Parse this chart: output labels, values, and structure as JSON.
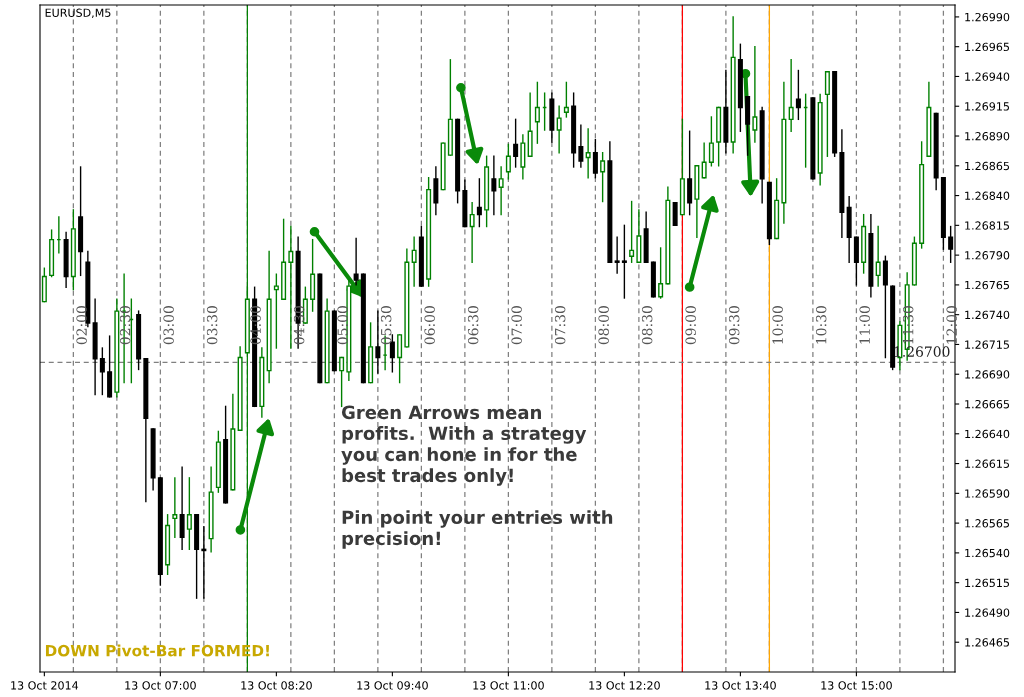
{
  "chart_data": {
    "type": "candlestick",
    "title": "EURUSD,M5",
    "x": [
      "2014-10-13T05:40",
      "2014-10-13T05:45",
      "2014-10-13T05:50",
      "2014-10-13T05:55",
      "2014-10-13T06:00",
      "2014-10-13T06:05",
      "2014-10-13T06:10",
      "2014-10-13T06:15",
      "2014-10-13T06:20",
      "2014-10-13T06:25",
      "2014-10-13T06:30",
      "2014-10-13T06:35",
      "2014-10-13T06:40",
      "2014-10-13T06:45",
      "2014-10-13T06:50",
      "2014-10-13T06:55",
      "2014-10-13T07:00",
      "2014-10-13T07:05",
      "2014-10-13T07:10",
      "2014-10-13T07:15",
      "2014-10-13T07:20",
      "2014-10-13T07:25",
      "2014-10-13T07:30",
      "2014-10-13T07:35",
      "2014-10-13T07:40",
      "2014-10-13T07:45",
      "2014-10-13T07:50",
      "2014-10-13T07:55",
      "2014-10-13T08:00",
      "2014-10-13T08:05",
      "2014-10-13T08:10",
      "2014-10-13T08:15",
      "2014-10-13T08:20",
      "2014-10-13T08:25",
      "2014-10-13T08:30",
      "2014-10-13T08:35",
      "2014-10-13T08:40",
      "2014-10-13T08:45",
      "2014-10-13T08:50",
      "2014-10-13T08:55",
      "2014-10-13T09:00",
      "2014-10-13T09:05",
      "2014-10-13T09:10",
      "2014-10-13T09:15",
      "2014-10-13T09:20",
      "2014-10-13T09:25",
      "2014-10-13T09:30",
      "2014-10-13T09:35",
      "2014-10-13T09:40",
      "2014-10-13T09:45",
      "2014-10-13T09:50",
      "2014-10-13T09:55",
      "2014-10-13T10:00",
      "2014-10-13T10:05",
      "2014-10-13T10:10",
      "2014-10-13T10:15",
      "2014-10-13T10:20",
      "2014-10-13T10:25",
      "2014-10-13T10:30",
      "2014-10-13T10:35",
      "2014-10-13T10:40",
      "2014-10-13T10:45",
      "2014-10-13T10:50",
      "2014-10-13T10:55",
      "2014-10-13T11:00",
      "2014-10-13T11:05",
      "2014-10-13T11:10",
      "2014-10-13T11:15",
      "2014-10-13T11:20",
      "2014-10-13T11:25",
      "2014-10-13T11:30",
      "2014-10-13T11:35",
      "2014-10-13T11:40",
      "2014-10-13T11:45",
      "2014-10-13T11:50",
      "2014-10-13T11:55",
      "2014-10-13T12:00",
      "2014-10-13T12:05",
      "2014-10-13T12:10",
      "2014-10-13T12:15",
      "2014-10-13T12:20",
      "2014-10-13T12:25",
      "2014-10-13T12:30",
      "2014-10-13T12:35",
      "2014-10-13T12:40",
      "2014-10-13T12:45",
      "2014-10-13T12:50",
      "2014-10-13T12:55",
      "2014-10-13T13:00",
      "2014-10-13T13:05",
      "2014-10-13T13:10",
      "2014-10-13T13:15",
      "2014-10-13T13:20",
      "2014-10-13T13:25",
      "2014-10-13T13:30",
      "2014-10-13T13:35",
      "2014-10-13T13:40",
      "2014-10-13T13:45",
      "2014-10-13T13:50",
      "2014-10-13T13:55",
      "2014-10-13T14:00",
      "2014-10-13T14:05",
      "2014-10-13T14:10",
      "2014-10-13T14:15",
      "2014-10-13T14:20",
      "2014-10-13T14:25",
      "2014-10-13T14:30",
      "2014-10-13T14:35",
      "2014-10-13T14:40",
      "2014-10-13T14:45",
      "2014-10-13T14:50",
      "2014-10-13T14:55",
      "2014-10-13T15:00",
      "2014-10-13T15:05",
      "2014-10-13T15:10",
      "2014-10-13T15:15",
      "2014-10-13T15:20",
      "2014-10-13T15:25",
      "2014-10-13T15:30",
      "2014-10-13T15:35",
      "2014-10-13T15:40",
      "2014-10-13T15:45",
      "2014-10-13T15:50",
      "2014-10-13T15:55",
      "2014-10-13T16:00",
      "2014-10-13T16:05"
    ],
    "ohlc": [
      [
        1.26751,
        1.26779,
        1.26751,
        1.26772
      ],
      [
        1.26773,
        1.26811,
        1.26772,
        1.26803
      ],
      [
        1.26803,
        1.26822,
        1.26792,
        1.26803
      ],
      [
        1.26803,
        1.26809,
        1.26763,
        1.26772
      ],
      [
        1.26772,
        1.26828,
        1.26761,
        1.26812
      ],
      [
        1.26822,
        1.26864,
        1.26773,
        1.26793
      ],
      [
        1.26784,
        1.26793,
        1.2673,
        1.26733
      ],
      [
        1.26733,
        1.26753,
        1.26673,
        1.26703
      ],
      [
        1.26703,
        1.26712,
        1.26673,
        1.26692
      ],
      [
        1.26692,
        1.26722,
        1.26671,
        1.26671
      ],
      [
        1.26675,
        1.26753,
        1.26671,
        1.26743
      ],
      [
        1.26743,
        1.26774,
        1.26683,
        1.26743
      ],
      [
        1.26736,
        1.26753,
        1.26683,
        1.26736
      ],
      [
        1.2674,
        1.26743,
        1.26694,
        1.26703
      ],
      [
        1.26703,
        1.26703,
        1.26583,
        1.26653
      ],
      [
        1.26644,
        1.26644,
        1.26593,
        1.26603
      ],
      [
        1.26603,
        1.26603,
        1.26513,
        1.26522
      ],
      [
        1.2653,
        1.26572,
        1.26522,
        1.26563
      ],
      [
        1.26569,
        1.26603,
        1.26553,
        1.26572
      ],
      [
        1.26572,
        1.26612,
        1.26543,
        1.26553
      ],
      [
        1.2656,
        1.26603,
        1.26543,
        1.26572
      ],
      [
        1.26572,
        1.26572,
        1.26502,
        1.26543
      ],
      [
        1.26543,
        1.26562,
        1.26502,
        1.26542
      ],
      [
        1.26552,
        1.26612,
        1.26541,
        1.26591
      ],
      [
        1.26595,
        1.26642,
        1.26591,
        1.26633
      ],
      [
        1.26635,
        1.26663,
        1.26582,
        1.26582
      ],
      [
        1.26593,
        1.26673,
        1.26593,
        1.26644
      ],
      [
        1.26643,
        1.26713,
        1.26643,
        1.26704
      ],
      [
        1.26708,
        1.26763,
        1.26708,
        1.26753
      ],
      [
        1.26753,
        1.26763,
        1.26663,
        1.26663
      ],
      [
        1.26663,
        1.26712,
        1.26654,
        1.26704
      ],
      [
        1.26693,
        1.26793,
        1.26683,
        1.26753
      ],
      [
        1.26761,
        1.26774,
        1.26712,
        1.26764
      ],
      [
        1.26753,
        1.2682,
        1.26753,
        1.26784
      ],
      [
        1.26784,
        1.26814,
        1.26712,
        1.26793
      ],
      [
        1.26793,
        1.26805,
        1.26712,
        1.26733
      ],
      [
        1.26733,
        1.26763,
        1.26733,
        1.26753
      ],
      [
        1.26753,
        1.26803,
        1.26743,
        1.26774
      ],
      [
        1.26774,
        1.26774,
        1.26683,
        1.26683
      ],
      [
        1.26683,
        1.26753,
        1.26683,
        1.26743
      ],
      [
        1.26743,
        1.26743,
        1.26693,
        1.26693
      ],
      [
        1.26693,
        1.26704,
        1.26663,
        1.26704
      ],
      [
        1.26692,
        1.26769,
        1.26685,
        1.26764
      ],
      [
        1.26774,
        1.26804,
        1.26765,
        1.26769
      ],
      [
        1.26774,
        1.26774,
        1.26683,
        1.26683
      ],
      [
        1.26683,
        1.26733,
        1.26683,
        1.26713
      ],
      [
        1.26713,
        1.26743,
        1.26691,
        1.26704
      ],
      [
        1.26706,
        1.26722,
        1.26694,
        1.26706
      ],
      [
        1.26717,
        1.26723,
        1.26692,
        1.26704
      ],
      [
        1.26704,
        1.26723,
        1.26683,
        1.26723
      ],
      [
        1.26713,
        1.26795,
        1.26713,
        1.26784
      ],
      [
        1.26784,
        1.26805,
        1.26764,
        1.26794
      ],
      [
        1.26805,
        1.26814,
        1.26764,
        1.26764
      ],
      [
        1.2677,
        1.26855,
        1.26764,
        1.26845
      ],
      [
        1.26854,
        1.26864,
        1.26824,
        1.26834
      ],
      [
        1.26845,
        1.26884,
        1.26845,
        1.26884
      ],
      [
        1.26874,
        1.26954,
        1.26874,
        1.26904
      ],
      [
        1.26904,
        1.26904,
        1.26834,
        1.26844
      ],
      [
        1.26844,
        1.26853,
        1.26814,
        1.26814
      ],
      [
        1.26814,
        1.26834,
        1.26784,
        1.26824
      ],
      [
        1.2683,
        1.26854,
        1.26814,
        1.26824
      ],
      [
        1.26828,
        1.26873,
        1.26814,
        1.26864
      ],
      [
        1.26854,
        1.26873,
        1.26824,
        1.26844
      ],
      [
        1.26847,
        1.26864,
        1.26824,
        1.26854
      ],
      [
        1.2686,
        1.26883,
        1.26854,
        1.26873
      ],
      [
        1.26883,
        1.26904,
        1.26864,
        1.26873
      ],
      [
        1.26864,
        1.26891,
        1.26854,
        1.26884
      ],
      [
        1.26873,
        1.26926,
        1.26873,
        1.26894
      ],
      [
        1.26902,
        1.26935,
        1.26884,
        1.26914
      ],
      [
        1.26914,
        1.26926,
        1.26895,
        1.26914
      ],
      [
        1.26921,
        1.26926,
        1.26885,
        1.26895
      ],
      [
        1.26895,
        1.26915,
        1.26876,
        1.26905
      ],
      [
        1.2691,
        1.26935,
        1.26906,
        1.26914
      ],
      [
        1.26915,
        1.26926,
        1.26864,
        1.26876
      ],
      [
        1.26881,
        1.26899,
        1.26864,
        1.26869
      ],
      [
        1.26872,
        1.26896,
        1.26855,
        1.26876
      ],
      [
        1.26876,
        1.26887,
        1.26855,
        1.26859
      ],
      [
        1.2686,
        1.26876,
        1.26835,
        1.26869
      ],
      [
        1.26869,
        1.26885,
        1.26784,
        1.26784
      ],
      [
        1.26785,
        1.26805,
        1.26775,
        1.26784
      ],
      [
        1.26785,
        1.26815,
        1.26754,
        1.26784
      ],
      [
        1.26789,
        1.26835,
        1.26784,
        1.26794
      ],
      [
        1.26784,
        1.26828,
        1.26784,
        1.26806
      ],
      [
        1.26812,
        1.26826,
        1.26784,
        1.26784
      ],
      [
        1.26784,
        1.26784,
        1.26755,
        1.26755
      ],
      [
        1.26755,
        1.26796,
        1.26754,
        1.26766
      ],
      [
        1.26766,
        1.26847,
        1.26766,
        1.26836
      ],
      [
        1.26834,
        1.26834,
        1.26815,
        1.26815
      ],
      [
        1.26824,
        1.26904,
        1.26824,
        1.26854
      ],
      [
        1.26854,
        1.26894,
        1.26824,
        1.26834
      ],
      [
        1.26837,
        1.26865,
        1.26805,
        1.26865
      ],
      [
        1.26855,
        1.26884,
        1.26855,
        1.26868
      ],
      [
        1.26868,
        1.26906,
        1.26865,
        1.26884
      ],
      [
        1.26885,
        1.26914,
        1.26865,
        1.26914
      ],
      [
        1.26914,
        1.26945,
        1.26876,
        1.26885
      ],
      [
        1.26885,
        1.2699,
        1.26876,
        1.26956
      ],
      [
        1.26954,
        1.26967,
        1.26894,
        1.26914
      ],
      [
        1.26923,
        1.26923,
        1.26874,
        1.269
      ],
      [
        1.26895,
        1.26965,
        1.26885,
        1.26906
      ],
      [
        1.26911,
        1.26914,
        1.26834,
        1.26854
      ],
      [
        1.26851,
        1.26851,
        1.26799,
        1.26804
      ],
      [
        1.26804,
        1.26854,
        1.26804,
        1.26836
      ],
      [
        1.26834,
        1.26935,
        1.26817,
        1.26904
      ],
      [
        1.26904,
        1.26954,
        1.26894,
        1.26914
      ],
      [
        1.26921,
        1.26945,
        1.26904,
        1.26914
      ],
      [
        1.26914,
        1.26925,
        1.26864,
        1.26914
      ],
      [
        1.26922,
        1.26922,
        1.26854,
        1.26854
      ],
      [
        1.26859,
        1.26925,
        1.26849,
        1.26918
      ],
      [
        1.26925,
        1.26944,
        1.26873,
        1.26944
      ],
      [
        1.26944,
        1.26944,
        1.26873,
        1.26876
      ],
      [
        1.26876,
        1.26895,
        1.26805,
        1.26826
      ],
      [
        1.2683,
        1.26839,
        1.26784,
        1.26805
      ],
      [
        1.26805,
        1.26805,
        1.26765,
        1.26784
      ],
      [
        1.26784,
        1.26824,
        1.26775,
        1.26814
      ],
      [
        1.26808,
        1.26824,
        1.26755,
        1.26764
      ],
      [
        1.26773,
        1.26814,
        1.26764,
        1.26784
      ],
      [
        1.26785,
        1.26789,
        1.26704,
        1.26765
      ],
      [
        1.26764,
        1.26764,
        1.26694,
        1.26696
      ],
      [
        1.26704,
        1.26734,
        1.26694,
        1.26731
      ],
      [
        1.26711,
        1.26775,
        1.26702,
        1.26765
      ],
      [
        1.26765,
        1.26805,
        1.26765,
        1.268
      ],
      [
        1.268,
        1.26885,
        1.26796,
        1.26866
      ],
      [
        1.26873,
        1.26935,
        1.26873,
        1.26914
      ],
      [
        1.26909,
        1.26909,
        1.26845,
        1.26855
      ],
      [
        1.26855,
        1.26855,
        1.26795,
        1.26805
      ],
      [
        1.26805,
        1.26814,
        1.26784,
        1.26795
      ]
    ],
    "xlim": [
      "2014-10-13T05:37",
      "2014-10-13T16:08"
    ],
    "xticks": [
      {
        "value": "2014-10-13T05:40",
        "label": "13 Oct 2014"
      },
      {
        "value": "2014-10-13T07:00",
        "label": "13 Oct 07:00"
      },
      {
        "value": "2014-10-13T08:20",
        "label": "13 Oct 08:20"
      },
      {
        "value": "2014-10-13T09:40",
        "label": "13 Oct 09:40"
      },
      {
        "value": "2014-10-13T11:00",
        "label": "13 Oct 11:00"
      },
      {
        "value": "2014-10-13T12:20",
        "label": "13 Oct 12:20"
      },
      {
        "value": "2014-10-13T13:40",
        "label": "13 Oct 13:40"
      },
      {
        "value": "2014-10-13T15:00",
        "label": "13 Oct 15:00"
      }
    ],
    "ylim": [
      1.2644,
      1.27
    ],
    "yticks": [
      {
        "value": 1.2699,
        "label": "1.26990"
      },
      1.26965,
      {
        "value": 1.2694,
        "label": "1.26940"
      },
      1.26915,
      {
        "value": 1.2689,
        "label": "1.26890"
      },
      1.26865,
      {
        "value": 1.2684,
        "label": "1.26840"
      },
      1.26815,
      {
        "value": 1.2679,
        "label": "1.26790"
      },
      1.26765,
      {
        "value": 1.2674,
        "label": "1.26740"
      },
      1.26715,
      {
        "value": 1.2669,
        "label": "1.26690"
      },
      1.26665,
      {
        "value": 1.2664,
        "label": "1.26640"
      },
      1.26615,
      {
        "value": 1.2659,
        "label": "1.26590"
      },
      1.26565,
      {
        "value": 1.2654,
        "label": "1.26540"
      },
      1.26515,
      {
        "value": 1.2649,
        "label": "1.26490"
      },
      1.26465
    ],
    "ref_lines": [
      {
        "axis": "x",
        "value": "2014-10-13T06:00",
        "label": "02:00",
        "color": "#808080",
        "line_style": "dashed"
      },
      {
        "axis": "x",
        "value": "2014-10-13T06:30",
        "label": "02:30",
        "color": "#808080",
        "line_style": "dashed"
      },
      {
        "axis": "x",
        "value": "2014-10-13T07:00",
        "label": "03:00",
        "color": "#808080",
        "line_style": "dashed"
      },
      {
        "axis": "x",
        "value": "2014-10-13T07:30",
        "label": "03:30",
        "color": "#808080",
        "line_style": "dashed"
      },
      {
        "axis": "x",
        "value": "2014-10-13T08:00",
        "label": "04:00",
        "color": "#808080",
        "line_style": "dashed"
      },
      {
        "axis": "x",
        "value": "2014-10-13T08:30",
        "label": "04:30",
        "color": "#808080",
        "line_style": "dashed"
      },
      {
        "axis": "x",
        "value": "2014-10-13T09:00",
        "label": "05:00",
        "color": "#808080",
        "line_style": "dashed"
      },
      {
        "axis": "x",
        "value": "2014-10-13T09:30",
        "label": "05:30",
        "color": "#808080",
        "line_style": "dashed"
      },
      {
        "axis": "x",
        "value": "2014-10-13T10:00",
        "label": "06:00",
        "color": "#808080",
        "line_style": "dashed"
      },
      {
        "axis": "x",
        "value": "2014-10-13T10:30",
        "label": "06:30",
        "color": "#808080",
        "line_style": "dashed"
      },
      {
        "axis": "x",
        "value": "2014-10-13T11:00",
        "label": "07:00",
        "color": "#808080",
        "line_style": "dashed"
      },
      {
        "axis": "x",
        "value": "2014-10-13T11:30",
        "label": "07:30",
        "color": "#808080",
        "line_style": "dashed"
      },
      {
        "axis": "x",
        "value": "2014-10-13T12:00",
        "label": "08:00",
        "color": "#808080",
        "line_style": "dashed"
      },
      {
        "axis": "x",
        "value": "2014-10-13T12:30",
        "label": "08:30",
        "color": "#808080",
        "line_style": "dashed"
      },
      {
        "axis": "x",
        "value": "2014-10-13T13:00",
        "label": "09:00",
        "color": "#808080",
        "line_style": "dashed"
      },
      {
        "axis": "x",
        "value": "2014-10-13T13:30",
        "label": "09:30",
        "color": "#808080",
        "line_style": "dashed"
      },
      {
        "axis": "x",
        "value": "2014-10-13T14:00",
        "label": "10:00",
        "color": "#808080",
        "line_style": "dashed"
      },
      {
        "axis": "x",
        "value": "2014-10-13T14:30",
        "label": "10:30",
        "color": "#808080",
        "line_style": "dashed"
      },
      {
        "axis": "x",
        "value": "2014-10-13T15:00",
        "label": "11:00",
        "color": "#808080",
        "line_style": "dashed"
      },
      {
        "axis": "x",
        "value": "2014-10-13T15:30",
        "label": "11:30",
        "color": "#808080",
        "line_style": "dashed"
      },
      {
        "axis": "x",
        "value": "2014-10-13T16:00",
        "label": "12:00",
        "color": "#808080",
        "line_style": "dashed"
      },
      {
        "axis": "x",
        "value": "2014-10-13T08:00",
        "color": "#008000",
        "line_style": "solid"
      },
      {
        "axis": "x",
        "value": "2014-10-13T13:00",
        "color": "#ff0000",
        "line_style": "solid"
      },
      {
        "axis": "x",
        "value": "2014-10-13T14:00",
        "color": "#ffa500",
        "line_style": "solid"
      },
      {
        "axis": "y",
        "value": 1.267,
        "label": "1.26700",
        "color": "#808080",
        "line_style": "dashed"
      }
    ],
    "annotations": [
      "Green Arrows mean\nprofits.  With a strategy\nyou can hone in for the\nbest trades only!\n\nPin point your entries with\nprecision!",
      "DOWN Pivot-Bar FORMED!"
    ]
  }
}
